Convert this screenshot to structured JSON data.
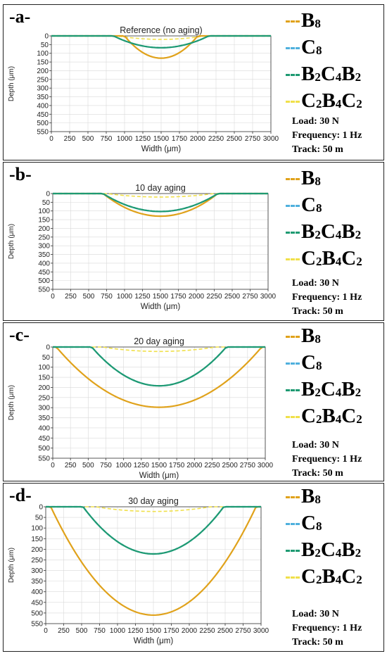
{
  "colors": {
    "B8": "#e0a21b",
    "C8": "#4fb0dd",
    "B2C4B2": "#1e9a72",
    "C2B4C2": "#f0e04a",
    "grid": "#d9d9d9",
    "axis": "#333333"
  },
  "legend_entries": [
    {
      "key": "B8",
      "label_main": [
        "B",
        ""
      ],
      "label_sub": [
        "8",
        ""
      ]
    },
    {
      "key": "C8",
      "label_main": [
        "C",
        ""
      ],
      "label_sub": [
        "8",
        ""
      ]
    },
    {
      "key": "B2C4B2",
      "label_main": [
        "B",
        "C",
        "B"
      ],
      "label_sub": [
        "2",
        "4",
        "2"
      ]
    },
    {
      "key": "C2B4C2",
      "label_main": [
        "C",
        "B",
        "C"
      ],
      "label_sub": [
        "2",
        "4",
        "2"
      ]
    }
  ],
  "conditions": [
    "Load: 30 N",
    "Frequency: 1 Hz",
    "Track: 50 m"
  ],
  "chart_data": [
    {
      "type": "line",
      "panel_label": "-a-",
      "title": "Reference (no aging)",
      "xlabel": "Width (μm)",
      "ylabel": "Depth (μm)",
      "xlim": [
        0,
        3000
      ],
      "ylim": [
        0,
        550
      ],
      "y_inverted": true,
      "xticks": [
        0,
        250,
        500,
        750,
        1000,
        1250,
        1500,
        1750,
        2000,
        2250,
        2500,
        2750,
        3000
      ],
      "yticks": [
        0,
        50,
        100,
        150,
        200,
        250,
        300,
        350,
        400,
        450,
        500,
        550
      ],
      "grid": true,
      "series": [
        {
          "key": "B8",
          "center": 1500,
          "half_width": 500,
          "max_depth": 128
        },
        {
          "key": "C8",
          "center": 1500,
          "half_width": 650,
          "max_depth": 68
        },
        {
          "key": "B2C4B2",
          "center": 1500,
          "half_width": 650,
          "max_depth": 68
        },
        {
          "key": "C2B4C2",
          "center": 1500,
          "half_width": 600,
          "max_depth": 20
        }
      ]
    },
    {
      "type": "line",
      "panel_label": "-b-",
      "title": "10 day aging",
      "xlabel": "Width (μm)",
      "ylabel": "Depth (μm)",
      "xlim": [
        0,
        3000
      ],
      "ylim": [
        0,
        550
      ],
      "y_inverted": true,
      "xticks": [
        0,
        250,
        500,
        750,
        1000,
        1250,
        1500,
        1750,
        2000,
        2250,
        2500,
        2750,
        3000
      ],
      "yticks": [
        0,
        50,
        100,
        150,
        200,
        250,
        300,
        350,
        400,
        450,
        500,
        550
      ],
      "grid": true,
      "series": [
        {
          "key": "B8",
          "center": 1500,
          "half_width": 800,
          "max_depth": 130
        },
        {
          "key": "C8",
          "center": 1500,
          "half_width": 800,
          "max_depth": 103
        },
        {
          "key": "B2C4B2",
          "center": 1500,
          "half_width": 800,
          "max_depth": 103
        },
        {
          "key": "C2B4C2",
          "center": 1500,
          "half_width": 750,
          "max_depth": 20
        }
      ]
    },
    {
      "type": "line",
      "panel_label": "-c-",
      "title": "20 day aging",
      "xlabel": "Width (μm)",
      "ylabel": "Depth (μm)",
      "xlim": [
        0,
        3000
      ],
      "ylim": [
        0,
        550
      ],
      "y_inverted": true,
      "xticks": [
        0,
        250,
        500,
        750,
        1000,
        1250,
        1500,
        1750,
        2000,
        2250,
        2500,
        2750,
        3000
      ],
      "yticks": [
        0,
        50,
        100,
        150,
        200,
        250,
        300,
        350,
        400,
        450,
        500,
        550
      ],
      "grid": true,
      "series": [
        {
          "key": "B8",
          "center": 1500,
          "half_width": 1450,
          "max_depth": 298
        },
        {
          "key": "C8",
          "center": 1500,
          "half_width": 950,
          "max_depth": 192
        },
        {
          "key": "B2C4B2",
          "center": 1500,
          "half_width": 950,
          "max_depth": 192
        },
        {
          "key": "C2B4C2",
          "center": 1500,
          "half_width": 800,
          "max_depth": 22
        }
      ]
    },
    {
      "type": "line",
      "panel_label": "-d-",
      "title": "30 day aging",
      "xlabel": "Width (μm)",
      "ylabel": "Depth (μm)",
      "xlim": [
        0,
        3000
      ],
      "ylim": [
        0,
        550
      ],
      "y_inverted": true,
      "xticks": [
        0,
        250,
        500,
        750,
        1000,
        1250,
        1500,
        1750,
        2000,
        2250,
        2500,
        2750,
        3000
      ],
      "yticks": [
        0,
        50,
        100,
        150,
        200,
        250,
        300,
        350,
        400,
        450,
        500,
        550
      ],
      "grid": true,
      "series": [
        {
          "key": "B8",
          "center": 1500,
          "half_width": 1430,
          "max_depth": 510
        },
        {
          "key": "C8",
          "center": 1500,
          "half_width": 980,
          "max_depth": 222
        },
        {
          "key": "B2C4B2",
          "center": 1500,
          "half_width": 980,
          "max_depth": 222
        },
        {
          "key": "C2B4C2",
          "center": 1500,
          "half_width": 800,
          "max_depth": 22
        }
      ]
    }
  ]
}
